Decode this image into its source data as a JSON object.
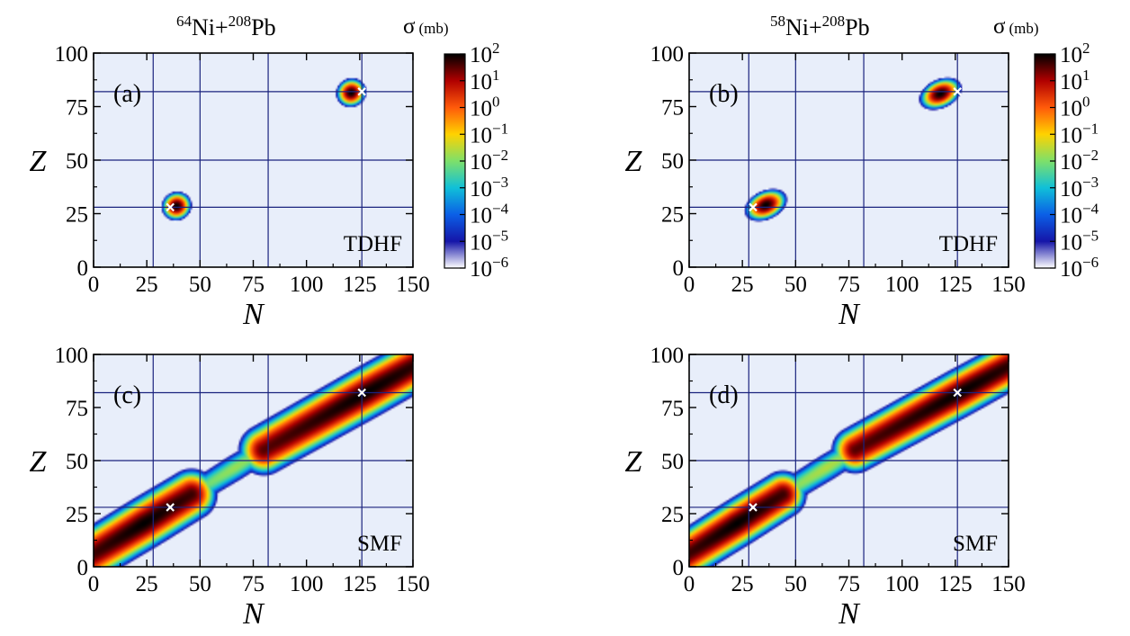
{
  "colors": {
    "background": "#e8eefa",
    "grid": "#1a237e",
    "colormap": [
      "#ffffff",
      "#1515a8",
      "#0b5fe6",
      "#10c0d8",
      "#7ee06a",
      "#ffd200",
      "#ff5a0a",
      "#b00000",
      "#000000"
    ],
    "marker": "#ffffff"
  },
  "colorbar": {
    "symbol": "σ",
    "unit": "(mb)",
    "base": "10",
    "exponents": [
      "2",
      "1",
      "0",
      "−1",
      "−2",
      "−3",
      "−4",
      "−5",
      "−6"
    ]
  },
  "titles": {
    "left": {
      "pre": "64",
      "a": "Ni+",
      "sup2": "208",
      "b": "Pb"
    },
    "right": {
      "pre": "58",
      "a": "Ni+",
      "sup2": "208",
      "b": "Pb"
    }
  },
  "chart_data": [
    {
      "type": "heatmap",
      "panel": "(a)",
      "model": "TDHF",
      "xlabel": "N",
      "ylabel": "Z",
      "xlim": [
        0,
        150
      ],
      "ylim": [
        0,
        100
      ],
      "xticks": [
        "0",
        "25",
        "50",
        "75",
        "100",
        "125",
        "150"
      ],
      "yticks": [
        "0",
        "25",
        "50",
        "75",
        "100"
      ],
      "grid_x": [
        28,
        50,
        82,
        126
      ],
      "grid_y": [
        28,
        50,
        82
      ],
      "log_scale": true,
      "colorbar_range": [
        -6,
        2
      ],
      "markers": [
        {
          "N": 36,
          "Z": 28
        },
        {
          "N": 126,
          "Z": 82
        }
      ],
      "blobs": [
        {
          "cx": 39,
          "cy": 28.5,
          "a": 7.5,
          "b": 7.0,
          "angle": 25,
          "peak": 2
        },
        {
          "cx": 121,
          "cy": 81.5,
          "a": 7.5,
          "b": 7.0,
          "angle": 25,
          "peak": 2
        }
      ],
      "bands": []
    },
    {
      "type": "heatmap",
      "panel": "(b)",
      "model": "TDHF",
      "xlabel": "N",
      "ylabel": "Z",
      "xlim": [
        0,
        150
      ],
      "ylim": [
        0,
        100
      ],
      "xticks": [
        "0",
        "25",
        "50",
        "75",
        "100",
        "125",
        "150"
      ],
      "yticks": [
        "0",
        "25",
        "50",
        "75",
        "100"
      ],
      "grid_x": [
        28,
        50,
        82,
        126
      ],
      "grid_y": [
        28,
        50,
        82
      ],
      "log_scale": true,
      "colorbar_range": [
        -6,
        2
      ],
      "markers": [
        {
          "N": 30,
          "Z": 28
        },
        {
          "N": 126,
          "Z": 82
        }
      ],
      "blobs": [
        {
          "cx": 36,
          "cy": 29,
          "a": 11,
          "b": 7.0,
          "angle": 25,
          "peak": 2
        },
        {
          "cx": 118,
          "cy": 81,
          "a": 11,
          "b": 7.0,
          "angle": 25,
          "peak": 2
        }
      ],
      "bands": []
    },
    {
      "type": "heatmap",
      "panel": "(c)",
      "model": "SMF",
      "xlabel": "N",
      "ylabel": "Z",
      "xlim": [
        0,
        150
      ],
      "ylim": [
        0,
        100
      ],
      "xticks": [
        "0",
        "25",
        "50",
        "75",
        "100",
        "125",
        "150"
      ],
      "yticks": [
        "0",
        "25",
        "50",
        "75",
        "100"
      ],
      "grid_x": [
        28,
        50,
        82,
        126
      ],
      "grid_y": [
        28,
        50,
        82
      ],
      "log_scale": true,
      "colorbar_range": [
        -6,
        2
      ],
      "markers": [
        {
          "N": 36,
          "Z": 28
        },
        {
          "N": 126,
          "Z": 82
        }
      ],
      "blobs": [],
      "bands": [
        {
          "x0": -10,
          "y0": 0,
          "x1": 46,
          "y1": 34,
          "halfwidth": 13,
          "peak": 2.0
        },
        {
          "x0": 46,
          "y0": 34,
          "x1": 80,
          "y1": 55,
          "halfwidth": 9,
          "peak": -1.8
        },
        {
          "x0": 80,
          "y0": 55,
          "x1": 160,
          "y1": 100,
          "halfwidth": 13,
          "peak": 2.0
        }
      ]
    },
    {
      "type": "heatmap",
      "panel": "(d)",
      "model": "SMF",
      "xlabel": "N",
      "ylabel": "Z",
      "xlim": [
        0,
        150
      ],
      "ylim": [
        0,
        100
      ],
      "xticks": [
        "0",
        "25",
        "50",
        "75",
        "100",
        "125",
        "150"
      ],
      "yticks": [
        "0",
        "25",
        "50",
        "75",
        "100"
      ],
      "grid_x": [
        28,
        50,
        82,
        126
      ],
      "grid_y": [
        28,
        50,
        82
      ],
      "log_scale": true,
      "colorbar_range": [
        -6,
        2
      ],
      "markers": [
        {
          "N": 30,
          "Z": 28
        },
        {
          "N": 126,
          "Z": 82
        }
      ],
      "blobs": [],
      "bands": [
        {
          "x0": -10,
          "y0": 0,
          "x1": 44,
          "y1": 34,
          "halfwidth": 12,
          "peak": 2.0
        },
        {
          "x0": 44,
          "y0": 34,
          "x1": 78,
          "y1": 55,
          "halfwidth": 9,
          "peak": -1.6
        },
        {
          "x0": 78,
          "y0": 55,
          "x1": 160,
          "y1": 100,
          "halfwidth": 12,
          "peak": 2.0
        }
      ]
    }
  ]
}
